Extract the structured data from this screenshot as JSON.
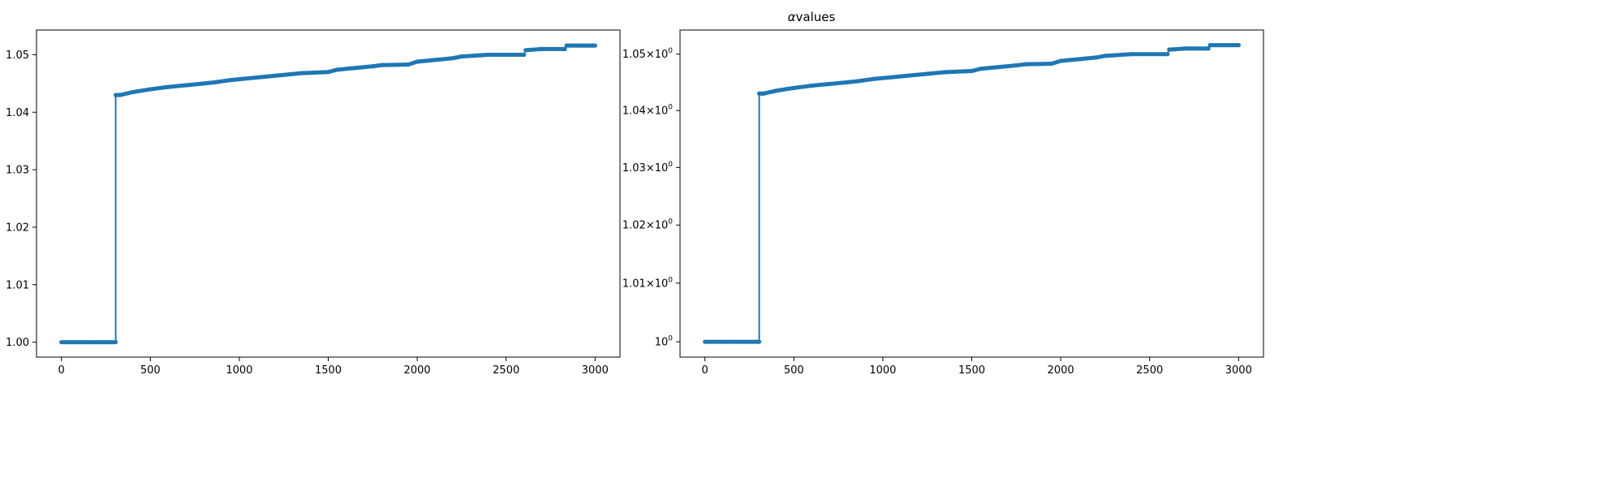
{
  "figure": {
    "title_italic": "α",
    "title_rest": "values"
  },
  "colors": {
    "series": "#1f77b4",
    "axes": "#000000",
    "background": "#ffffff"
  },
  "chart_data": [
    {
      "type": "line",
      "markers": "dots",
      "yscale": "linear",
      "title": "",
      "xlabel": "",
      "ylabel": "",
      "xlim": [
        -140,
        3140
      ],
      "ylim": [
        0.9974,
        1.0543
      ],
      "xticks": [
        0,
        500,
        1000,
        1500,
        2000,
        2500,
        3000
      ],
      "xtick_labels": [
        "0",
        "500",
        "1000",
        "1500",
        "2000",
        "2500",
        "3000"
      ],
      "yticks": [
        1.0,
        1.01,
        1.02,
        1.03,
        1.04,
        1.05
      ],
      "ytick_labels": [
        "1.00",
        "1.01",
        "1.02",
        "1.03",
        "1.04",
        "1.05"
      ],
      "grid": false,
      "legend": "none",
      "series": [
        {
          "x": [
            0,
            305,
            305,
            330,
            400,
            500,
            600,
            700,
            800,
            860,
            950,
            1050,
            1150,
            1250,
            1350,
            1500,
            1550,
            1650,
            1750,
            1800,
            1950,
            2000,
            2100,
            2200,
            2250,
            2400,
            2600,
            2610,
            2700,
            2830,
            2840,
            3000
          ],
          "y": [
            1.0,
            1.0,
            1.043,
            1.043,
            1.0435,
            1.044,
            1.0444,
            1.0447,
            1.045,
            1.0452,
            1.0456,
            1.0459,
            1.0462,
            1.0465,
            1.0468,
            1.047,
            1.0474,
            1.0477,
            1.048,
            1.0482,
            1.0483,
            1.0488,
            1.0491,
            1.0494,
            1.0497,
            1.05,
            1.05,
            1.0508,
            1.051,
            1.051,
            1.0516,
            1.0516
          ]
        }
      ]
    },
    {
      "type": "line",
      "markers": "dots",
      "yscale": "log",
      "title": "",
      "xlabel": "",
      "ylabel": "",
      "xlim": [
        -140,
        3140
      ],
      "ylim": [
        0.9974,
        1.0543
      ],
      "xticks": [
        0,
        500,
        1000,
        1500,
        2000,
        2500,
        3000
      ],
      "xtick_labels": [
        "0",
        "500",
        "1000",
        "1500",
        "2000",
        "2500",
        "3000"
      ],
      "yticks": [
        1.0,
        1.01,
        1.02,
        1.03,
        1.04,
        1.05
      ],
      "ytick_labels": [
        {
          "base": "1.05×10",
          "exp": "0"
        },
        {
          "base": "1.04×10",
          "exp": "0"
        },
        {
          "base": "1.03×10",
          "exp": "0"
        },
        {
          "base": "1.02×10",
          "exp": "0"
        },
        {
          "base": "1.01×10",
          "exp": "0"
        },
        {
          "base": "10",
          "exp": "0"
        }
      ],
      "ytick_values_for_labels": [
        1.05,
        1.04,
        1.03,
        1.02,
        1.01,
        1.0
      ],
      "grid": false,
      "legend": "none",
      "series": [
        {
          "x": [
            0,
            305,
            305,
            330,
            400,
            500,
            600,
            700,
            800,
            860,
            950,
            1050,
            1150,
            1250,
            1350,
            1500,
            1550,
            1650,
            1750,
            1800,
            1950,
            2000,
            2100,
            2200,
            2250,
            2400,
            2600,
            2610,
            2700,
            2830,
            2840,
            3000
          ],
          "y": [
            1.0,
            1.0,
            1.043,
            1.043,
            1.0435,
            1.044,
            1.0444,
            1.0447,
            1.045,
            1.0452,
            1.0456,
            1.0459,
            1.0462,
            1.0465,
            1.0468,
            1.047,
            1.0474,
            1.0477,
            1.048,
            1.0482,
            1.0483,
            1.0488,
            1.0491,
            1.0494,
            1.0497,
            1.05,
            1.05,
            1.0508,
            1.051,
            1.051,
            1.0516,
            1.0516
          ]
        }
      ]
    }
  ]
}
